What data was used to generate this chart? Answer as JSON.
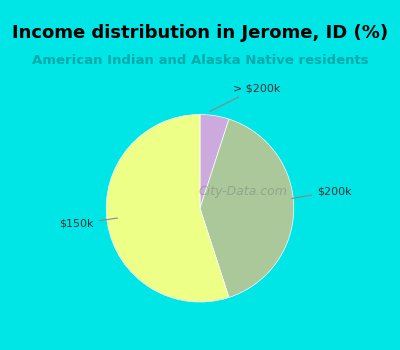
{
  "title": "Income distribution in Jerome, ID (%)",
  "subtitle": "American Indian and Alaska Native residents",
  "title_color": "#000000",
  "subtitle_color": "#00aaaa",
  "background_color": "#00e5e5",
  "panel_color": "#e8f5f0",
  "slices": [
    {
      "label": "$150k",
      "value": 55,
      "color": "#eeff88",
      "label_side": "left"
    },
    {
      "label": "$200k",
      "value": 40,
      "color": "#aac899",
      "label_side": "right"
    },
    {
      "label": "> $200k",
      "value": 5,
      "color": "#ccaadd",
      "label_side": "top"
    }
  ],
  "startangle": 90,
  "figsize": [
    4.0,
    3.5
  ],
  "dpi": 100
}
